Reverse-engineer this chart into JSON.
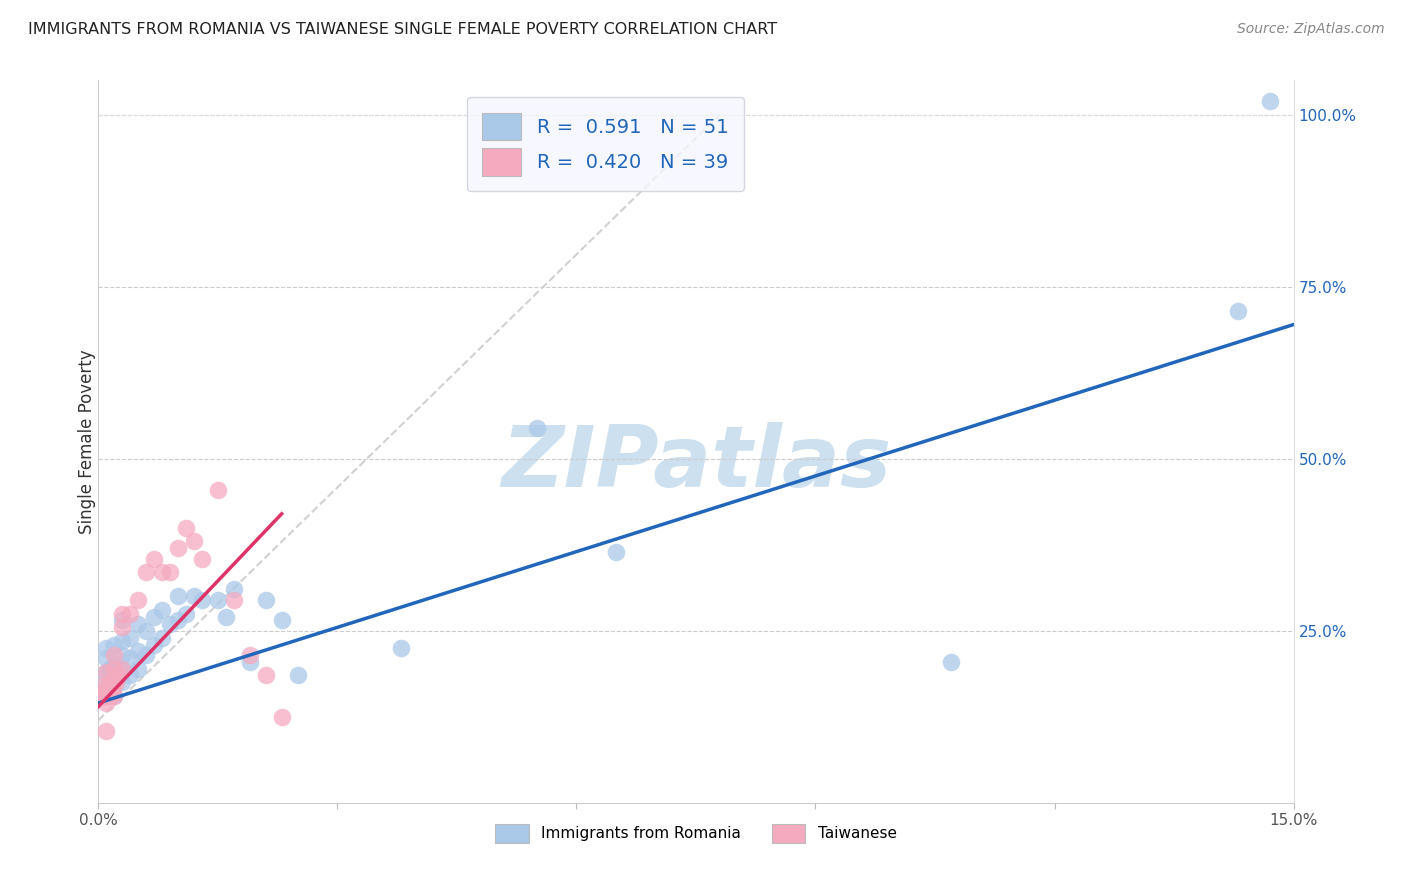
{
  "title": "IMMIGRANTS FROM ROMANIA VS TAIWANESE SINGLE FEMALE POVERTY CORRELATION CHART",
  "source": "Source: ZipAtlas.com",
  "ylabel": "Single Female Poverty",
  "xlim": [
    0.0,
    0.15
  ],
  "ylim": [
    0.0,
    1.05
  ],
  "xtick_positions": [
    0.0,
    0.03,
    0.06,
    0.09,
    0.12,
    0.15
  ],
  "xtick_labels": [
    "0.0%",
    "",
    "",
    "",
    "",
    "15.0%"
  ],
  "ytick_positions": [
    0.25,
    0.5,
    0.75,
    1.0
  ],
  "ytick_labels": [
    "25.0%",
    "50.0%",
    "75.0%",
    "100.0%"
  ],
  "legend1_label": "R =  0.591   N = 51",
  "legend2_label": "R =  0.420   N = 39",
  "romania_color": "#aac8e8",
  "taiwanese_color": "#f5aabf",
  "romania_line_color": "#2266bb",
  "taiwanese_line_color": "#dd3366",
  "diagonal_color": "#cccccc",
  "watermark": "ZIPatlas",
  "watermark_color": "#cce0f0",
  "legend_facecolor": "#f5f5ff",
  "legend_edgecolor": "#ccccdd",
  "grid_color": "#cccccc",
  "scatter_romania_x": [
    0.0005,
    0.0008,
    0.001,
    0.001,
    0.001,
    0.0012,
    0.0015,
    0.0015,
    0.0018,
    0.002,
    0.002,
    0.002,
    0.002,
    0.0022,
    0.0025,
    0.003,
    0.003,
    0.003,
    0.003,
    0.003,
    0.004,
    0.004,
    0.004,
    0.005,
    0.005,
    0.005,
    0.006,
    0.006,
    0.007,
    0.007,
    0.008,
    0.008,
    0.009,
    0.01,
    0.01,
    0.011,
    0.012,
    0.013,
    0.015,
    0.016,
    0.017,
    0.019,
    0.021,
    0.023,
    0.025,
    0.038,
    0.055,
    0.065,
    0.107,
    0.143,
    0.147
  ],
  "scatter_romania_y": [
    0.175,
    0.155,
    0.19,
    0.21,
    0.225,
    0.165,
    0.17,
    0.195,
    0.185,
    0.155,
    0.18,
    0.2,
    0.23,
    0.175,
    0.185,
    0.175,
    0.195,
    0.215,
    0.235,
    0.265,
    0.185,
    0.21,
    0.24,
    0.195,
    0.22,
    0.26,
    0.215,
    0.25,
    0.23,
    0.27,
    0.24,
    0.28,
    0.26,
    0.265,
    0.3,
    0.275,
    0.3,
    0.295,
    0.295,
    0.27,
    0.31,
    0.205,
    0.295,
    0.265,
    0.185,
    0.225,
    0.545,
    0.365,
    0.205,
    0.715,
    1.02
  ],
  "scatter_taiwanese_x": [
    0.0003,
    0.0005,
    0.0005,
    0.0007,
    0.0008,
    0.001,
    0.001,
    0.001,
    0.001,
    0.0012,
    0.0012,
    0.0013,
    0.0015,
    0.0015,
    0.0018,
    0.002,
    0.002,
    0.002,
    0.002,
    0.0022,
    0.0025,
    0.003,
    0.003,
    0.003,
    0.004,
    0.005,
    0.006,
    0.007,
    0.008,
    0.009,
    0.01,
    0.011,
    0.012,
    0.013,
    0.015,
    0.017,
    0.019,
    0.021,
    0.023
  ],
  "scatter_taiwanese_y": [
    0.155,
    0.155,
    0.17,
    0.155,
    0.155,
    0.105,
    0.145,
    0.165,
    0.19,
    0.155,
    0.165,
    0.155,
    0.155,
    0.175,
    0.165,
    0.155,
    0.175,
    0.195,
    0.215,
    0.175,
    0.185,
    0.195,
    0.255,
    0.275,
    0.275,
    0.295,
    0.335,
    0.355,
    0.335,
    0.335,
    0.37,
    0.4,
    0.38,
    0.355,
    0.455,
    0.295,
    0.215,
    0.185,
    0.125
  ],
  "ro_line_x0": 0.0,
  "ro_line_x1": 0.15,
  "ro_line_y0": 0.145,
  "ro_line_y1": 0.695,
  "tw_line_x0": 0.0,
  "tw_line_x1": 0.023,
  "tw_line_y0": 0.14,
  "tw_line_y1": 0.42
}
